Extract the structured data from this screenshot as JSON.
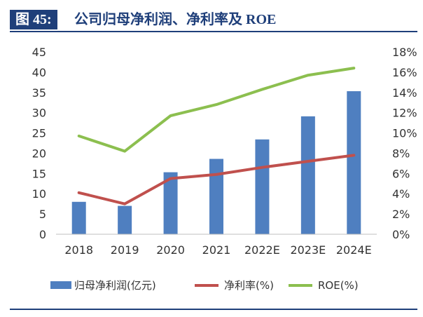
{
  "header": {
    "figure_label": "图 45:",
    "title": "公司归母净利润、净利率及 ROE"
  },
  "colors": {
    "header_bg": "#1f3f7a",
    "bar": "#4f7fc0",
    "net_margin_line": "#c0504d",
    "roe_line": "#8cbf4f"
  },
  "chart_data": {
    "type": "bar",
    "categories": [
      "2018",
      "2019",
      "2020",
      "2021",
      "2022E",
      "2023E",
      "2024E"
    ],
    "series": [
      {
        "name": "归母净利润(亿元)",
        "type": "bar",
        "axis": "left",
        "values": [
          8.0,
          7.0,
          15.3,
          18.6,
          23.4,
          29.1,
          35.3
        ]
      },
      {
        "name": "净利率(%)",
        "type": "line",
        "axis": "right",
        "values": [
          4.1,
          3.0,
          5.5,
          5.9,
          6.6,
          7.2,
          7.8
        ]
      },
      {
        "name": "ROE(%)",
        "type": "line",
        "axis": "right",
        "values": [
          9.7,
          8.2,
          11.7,
          12.8,
          14.3,
          15.7,
          16.4
        ]
      }
    ],
    "left_axis": {
      "ylim": [
        0,
        45
      ],
      "ticks": [
        "0",
        "5",
        "10",
        "15",
        "20",
        "25",
        "30",
        "35",
        "40",
        "45"
      ]
    },
    "right_axis": {
      "ylim": [
        0,
        18
      ],
      "ticks": [
        "0%",
        "2%",
        "4%",
        "6%",
        "8%",
        "10%",
        "12%",
        "14%",
        "16%",
        "18%"
      ]
    },
    "grid": false,
    "legend_position": "bottom"
  }
}
